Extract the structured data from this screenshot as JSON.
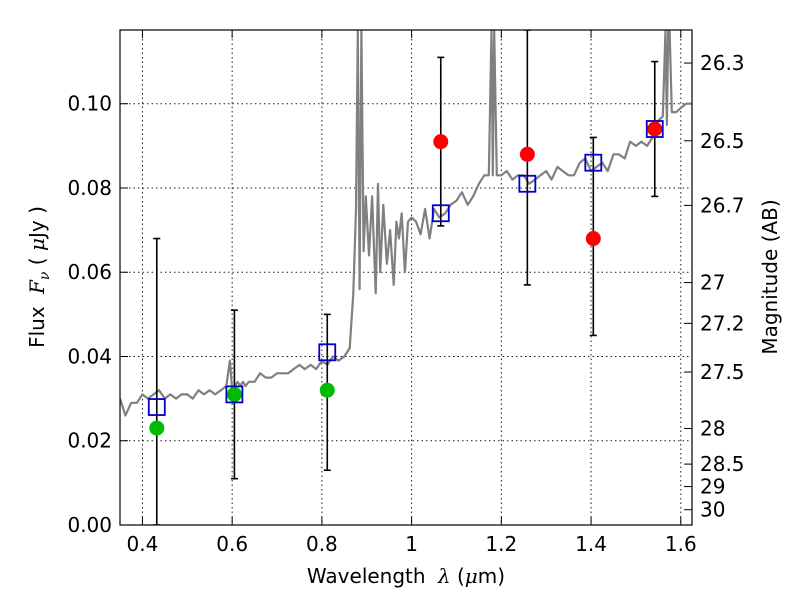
{
  "chart_data": {
    "type": "scatter",
    "title": "",
    "xlabel": {
      "prefix": "Wavelength ",
      "symbol": "λ",
      "unit_open": " (",
      "unit_mu": "μ",
      "unit_rest": "m)"
    },
    "ylabel": {
      "prefix": "Flux ",
      "symbol": "F",
      "subscript": "ν",
      "unit_open": " ( ",
      "unit_mu": "μ",
      "unit_rest": "Jy )"
    },
    "ylabel_right": "Magnitude (AB)",
    "xlim": [
      0.35,
      1.625
    ],
    "ylim": [
      0.0,
      0.1175
    ],
    "grid": true,
    "x_ticks": [
      {
        "value": 0.4,
        "label": "0.4"
      },
      {
        "value": 0.6,
        "label": "0.6"
      },
      {
        "value": 0.8,
        "label": "0.8"
      },
      {
        "value": 1.0,
        "label": "1"
      },
      {
        "value": 1.2,
        "label": "1.2"
      },
      {
        "value": 1.4,
        "label": "1.4"
      },
      {
        "value": 1.6,
        "label": "1.6"
      }
    ],
    "y_ticks": [
      {
        "value": 0.0,
        "label": "0.00"
      },
      {
        "value": 0.02,
        "label": "0.02"
      },
      {
        "value": 0.04,
        "label": "0.04"
      },
      {
        "value": 0.06,
        "label": "0.06"
      },
      {
        "value": 0.08,
        "label": "0.08"
      },
      {
        "value": 0.1,
        "label": "0.10"
      }
    ],
    "right_ticks": [
      {
        "value": 26.3,
        "label": "26.3"
      },
      {
        "value": 26.5,
        "label": "26.5"
      },
      {
        "value": 26.7,
        "label": "26.7"
      },
      {
        "value": 27.0,
        "label": "27"
      },
      {
        "value": 27.2,
        "label": "27.2"
      },
      {
        "value": 27.5,
        "label": "27.5"
      },
      {
        "value": 28.0,
        "label": "28"
      },
      {
        "value": 28.5,
        "label": "28.5"
      },
      {
        "value": 29.0,
        "label": "29"
      },
      {
        "value": 30.0,
        "label": "30"
      }
    ],
    "colors": {
      "spectrum": "#808080",
      "detection": "#ff0000",
      "upper_limit": "#00bb00",
      "model": "#0000cc",
      "errorbar": "#000000"
    },
    "spectrum": {
      "x": [
        0.35,
        0.362,
        0.375,
        0.388,
        0.4,
        0.412,
        0.425,
        0.437,
        0.45,
        0.462,
        0.475,
        0.487,
        0.5,
        0.512,
        0.525,
        0.537,
        0.55,
        0.562,
        0.575,
        0.587,
        0.595,
        0.6,
        0.606,
        0.612,
        0.618,
        0.624,
        0.63,
        0.637,
        0.65,
        0.662,
        0.675,
        0.687,
        0.7,
        0.712,
        0.725,
        0.737,
        0.75,
        0.762,
        0.775,
        0.787,
        0.8,
        0.812,
        0.825,
        0.837,
        0.85,
        0.862,
        0.87,
        0.876,
        0.88,
        0.884,
        0.888,
        0.893,
        0.898,
        0.905,
        0.912,
        0.92,
        0.925,
        0.93,
        0.937,
        0.945,
        0.952,
        0.96,
        0.966,
        0.972,
        0.978,
        0.985,
        0.992,
        1.0,
        1.01,
        1.02,
        1.03,
        1.04,
        1.05,
        1.062,
        1.075,
        1.087,
        1.1,
        1.112,
        1.125,
        1.137,
        1.15,
        1.162,
        1.172,
        1.178,
        1.181,
        1.184,
        1.19,
        1.2,
        1.212,
        1.225,
        1.237,
        1.25,
        1.262,
        1.275,
        1.287,
        1.3,
        1.312,
        1.325,
        1.337,
        1.35,
        1.362,
        1.375,
        1.387,
        1.4,
        1.412,
        1.425,
        1.437,
        1.45,
        1.462,
        1.475,
        1.487,
        1.5,
        1.512,
        1.525,
        1.537,
        1.55,
        1.56,
        1.566,
        1.569,
        1.572,
        1.575,
        1.58,
        1.59,
        1.6,
        1.612,
        1.625
      ],
      "y": [
        0.03,
        0.026,
        0.029,
        0.029,
        0.031,
        0.03,
        0.031,
        0.032,
        0.03,
        0.031,
        0.03,
        0.031,
        0.031,
        0.03,
        0.032,
        0.031,
        0.032,
        0.031,
        0.032,
        0.033,
        0.039,
        0.032,
        0.033,
        0.034,
        0.033,
        0.034,
        0.033,
        0.034,
        0.034,
        0.036,
        0.035,
        0.035,
        0.036,
        0.036,
        0.036,
        0.037,
        0.038,
        0.037,
        0.038,
        0.037,
        0.039,
        0.038,
        0.04,
        0.039,
        0.04,
        0.042,
        0.055,
        0.075,
        0.1175,
        0.056,
        0.1175,
        0.065,
        0.078,
        0.064,
        0.078,
        0.055,
        0.081,
        0.06,
        0.076,
        0.062,
        0.07,
        0.057,
        0.072,
        0.068,
        0.074,
        0.06,
        0.072,
        0.073,
        0.072,
        0.069,
        0.075,
        0.068,
        0.075,
        0.073,
        0.074,
        0.076,
        0.077,
        0.079,
        0.076,
        0.078,
        0.081,
        0.083,
        0.083,
        0.1175,
        0.083,
        0.1175,
        0.083,
        0.083,
        0.084,
        0.082,
        0.083,
        0.083,
        0.081,
        0.082,
        0.083,
        0.084,
        0.082,
        0.085,
        0.084,
        0.083,
        0.083,
        0.086,
        0.087,
        0.084,
        0.085,
        0.086,
        0.084,
        0.088,
        0.088,
        0.087,
        0.091,
        0.09,
        0.091,
        0.09,
        0.092,
        0.096,
        0.097,
        0.1175,
        0.095,
        0.1175,
        0.1175,
        0.098,
        0.098,
        0.099,
        0.1,
        0.1
      ]
    },
    "series": [
      {
        "marker": "circle-red",
        "x": [
          1.065,
          1.258,
          1.405,
          1.542
        ],
        "y": [
          0.091,
          0.088,
          0.068,
          0.094
        ]
      },
      {
        "marker": "circle-green",
        "x": [
          0.432,
          0.605,
          0.812
        ],
        "y": [
          0.023,
          0.031,
          0.032
        ]
      },
      {
        "marker": "square-open-blue",
        "x": [
          0.432,
          0.605,
          0.812,
          1.065,
          1.258,
          1.405,
          1.542
        ],
        "y": [
          0.028,
          0.031,
          0.041,
          0.074,
          0.081,
          0.086,
          0.094
        ]
      }
    ],
    "errorbars": [
      {
        "x": 0.432,
        "low": 0.0,
        "high": 0.068
      },
      {
        "x": 0.605,
        "low": 0.011,
        "high": 0.051
      },
      {
        "x": 0.812,
        "low": 0.013,
        "high": 0.05
      },
      {
        "x": 1.065,
        "low": 0.071,
        "high": 0.111
      },
      {
        "x": 1.258,
        "low": 0.057,
        "high": 0.1175
      },
      {
        "x": 1.405,
        "low": 0.045,
        "high": 0.092
      },
      {
        "x": 1.542,
        "low": 0.078,
        "high": 0.11
      }
    ]
  }
}
